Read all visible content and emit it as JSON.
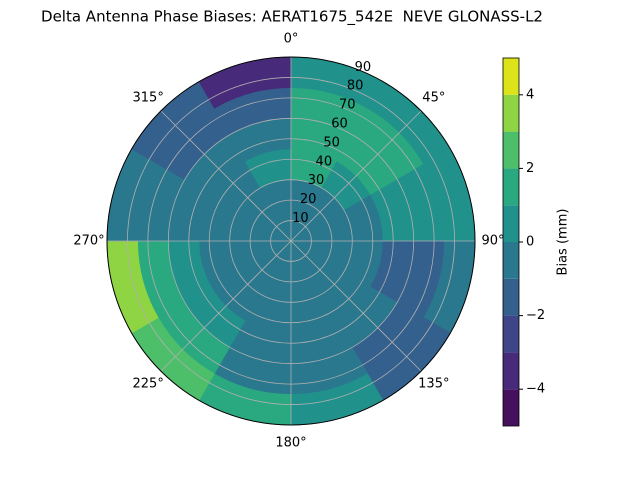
{
  "chart_data": {
    "type": "polar_contour",
    "title": "Delta Antenna Phase Biases: AERAT1675_542E  NEVE GLONASS-L2",
    "direction": "clockwise",
    "zero_location": "N",
    "azimuth_bins": [
      0,
      30,
      60,
      90,
      120,
      150,
      180,
      210,
      240,
      270,
      300,
      330,
      360
    ],
    "zenith_bins": [
      0,
      15,
      30,
      45,
      60,
      75,
      90
    ],
    "z": [
      [
        -0.5,
        -0.5,
        -0.5,
        -0.5,
        -0.5,
        -0.5,
        -0.5,
        -0.5,
        -0.5,
        -0.5,
        -0.5,
        -0.5
      ],
      [
        -0.5,
        -0.5,
        -0.5,
        -0.5,
        -0.5,
        -0.5,
        -0.5,
        -0.5,
        -0.5,
        -0.5,
        -0.5,
        -0.5
      ],
      [
        1.5,
        0.5,
        -0.5,
        -0.5,
        -0.5,
        -0.5,
        -0.5,
        -0.5,
        -0.5,
        -0.5,
        -0.5,
        0.5
      ],
      [
        1.5,
        1.5,
        0.5,
        -1.5,
        -0.5,
        -0.5,
        -0.5,
        0.5,
        0.5,
        -0.5,
        -0.5,
        -0.5
      ],
      [
        1.5,
        1.5,
        0.5,
        -1.5,
        -1.5,
        -0.5,
        -0.5,
        1.5,
        1.5,
        -0.5,
        -1.5,
        -1.5
      ],
      [
        0.5,
        0.5,
        0.5,
        -0.5,
        -1.5,
        0.5,
        1.5,
        2.5,
        3.5,
        -0.5,
        -1.5,
        -3.5
      ]
    ],
    "levels": [
      -5,
      -4,
      -3,
      -2,
      -1,
      0,
      1,
      2,
      3,
      4,
      5
    ],
    "colors": [
      "#45115f",
      "#472b7a",
      "#3f4688",
      "#34608d",
      "#2a788e",
      "#21918c",
      "#2aa87f",
      "#4dbf6a",
      "#8fd543",
      "#dce319"
    ],
    "xticks": [
      {
        "value": 0,
        "label": "0°"
      },
      {
        "value": 45,
        "label": "45°"
      },
      {
        "value": 90,
        "label": "90°"
      },
      {
        "value": 135,
        "label": "135°"
      },
      {
        "value": 180,
        "label": "180°"
      },
      {
        "value": 225,
        "label": "225°"
      },
      {
        "value": 270,
        "label": "270°"
      },
      {
        "value": 315,
        "label": "315°"
      }
    ],
    "ylim": [
      0,
      90
    ],
    "yticks": [
      10,
      20,
      30,
      40,
      50,
      60,
      70,
      80,
      90
    ],
    "grid": true,
    "colorbar_label": "Bias (mm)",
    "colorbar_ticks": [
      {
        "value": -4,
        "label": "−4"
      },
      {
        "value": -2,
        "label": "−2"
      },
      0,
      2,
      4
    ]
  }
}
